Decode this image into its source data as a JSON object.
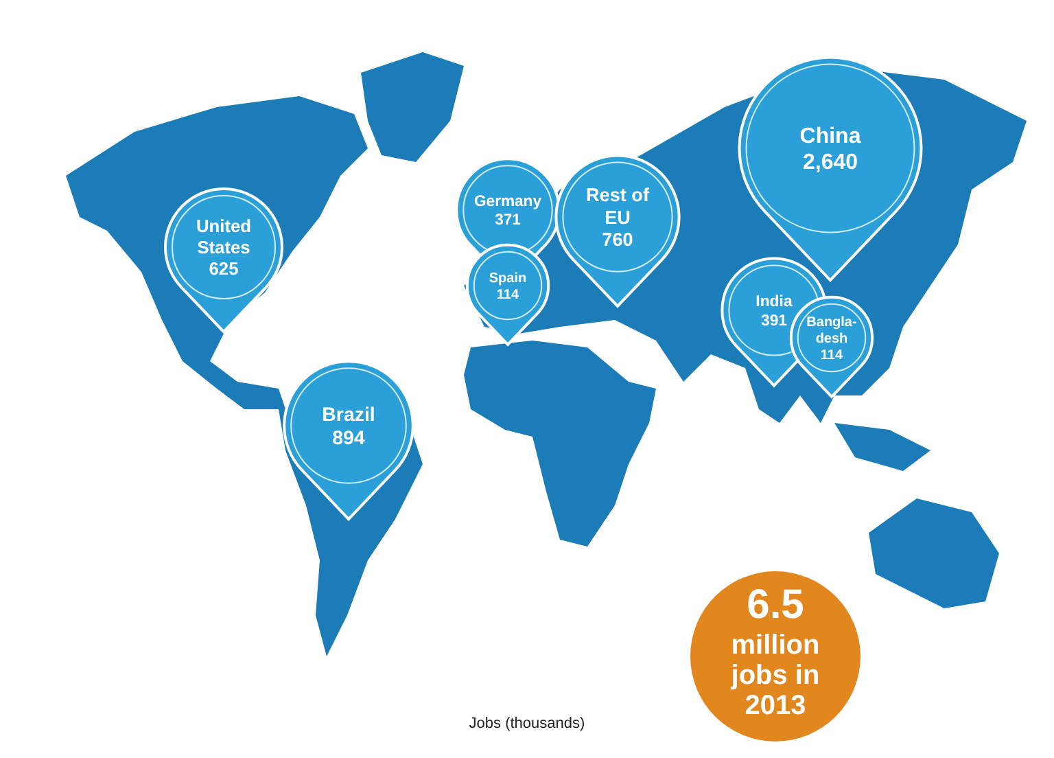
{
  "chart_data": {
    "type": "other",
    "categories": [
      "United States",
      "Germany",
      "Spain",
      "Rest of EU",
      "China",
      "India",
      "Bangla-desh",
      "Brazil"
    ],
    "values": [
      625,
      371,
      114,
      760,
      2640,
      391,
      114,
      894
    ],
    "value_labels": [
      "625",
      "371",
      "114",
      "760",
      "2,640",
      "391",
      "114",
      "894"
    ],
    "color": "#2a9fd8",
    "annotations": [
      "Jobs (thousands)",
      "6.5 million jobs in 2013"
    ]
  }
}
